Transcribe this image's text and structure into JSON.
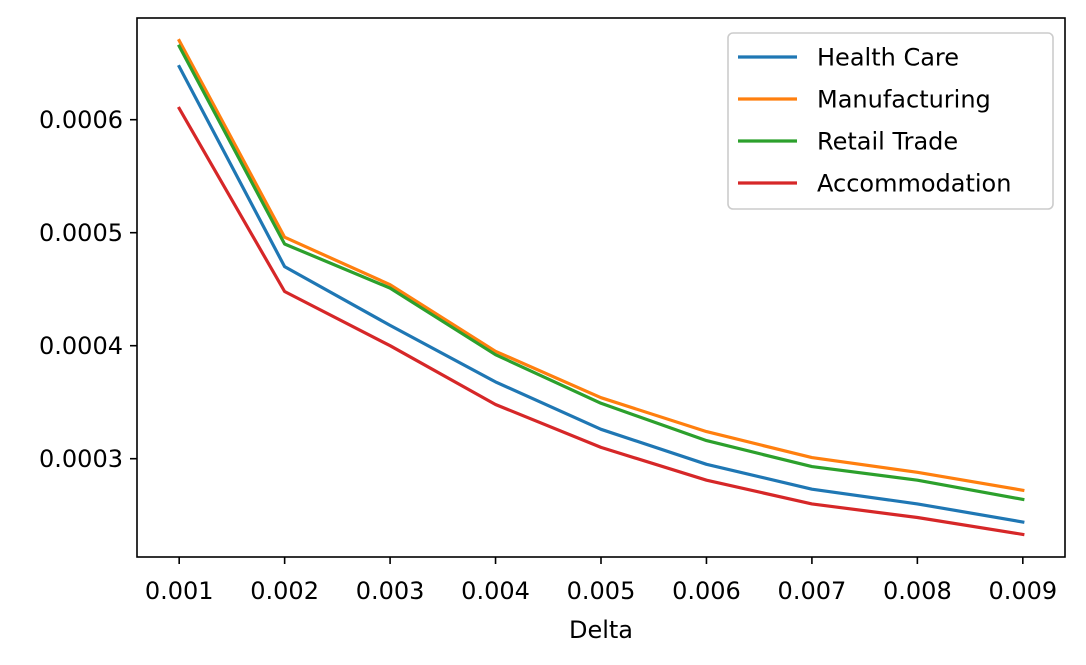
{
  "chart_data": {
    "type": "line",
    "title": "",
    "xlabel": "Delta",
    "ylabel": "",
    "x": [
      0.001,
      0.002,
      0.003,
      0.004,
      0.005,
      0.006,
      0.007,
      0.008,
      0.009
    ],
    "x_tick_labels": [
      "0.001",
      "0.002",
      "0.003",
      "0.004",
      "0.005",
      "0.006",
      "0.007",
      "0.008",
      "0.009"
    ],
    "y_ticks": [
      0.0003,
      0.0004,
      0.0005,
      0.0006
    ],
    "y_tick_labels": [
      "0.0003",
      "0.0004",
      "0.0005",
      "0.0006"
    ],
    "xlim": [
      0.0006,
      0.0094
    ],
    "ylim": [
      0.000213,
      0.00069
    ],
    "grid": false,
    "legend_position": "top-right",
    "series": [
      {
        "name": "Health Care",
        "color": "#1f77b4",
        "values": [
          0.000647,
          0.00047,
          0.000418,
          0.000368,
          0.000326,
          0.000295,
          0.000273,
          0.00026,
          0.000244
        ]
      },
      {
        "name": "Manufacturing",
        "color": "#ff7f0e",
        "values": [
          0.00067,
          0.000496,
          0.000454,
          0.000395,
          0.000354,
          0.000324,
          0.000301,
          0.000288,
          0.000272
        ]
      },
      {
        "name": "Retail Trade",
        "color": "#2ca02c",
        "values": [
          0.000665,
          0.00049,
          0.000451,
          0.000392,
          0.000349,
          0.000316,
          0.000293,
          0.000281,
          0.000264
        ]
      },
      {
        "name": "Accommodation",
        "color": "#d62728",
        "values": [
          0.00061,
          0.000448,
          0.0004,
          0.000348,
          0.00031,
          0.000281,
          0.00026,
          0.000248,
          0.000233
        ]
      }
    ]
  }
}
